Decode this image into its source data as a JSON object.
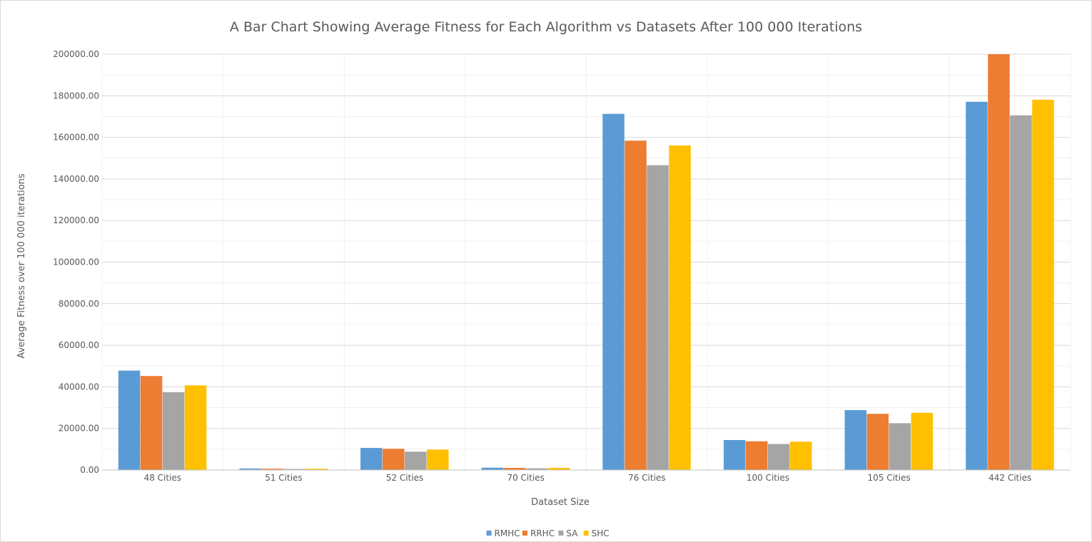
{
  "chart_data": {
    "type": "bar",
    "title": "A Bar Chart Showing Average Fitness for Each Algorithm vs Datasets After 100 000 Iterations",
    "xlabel": "Dataset Size",
    "ylabel": "Average Fitness over 100 000 iterations",
    "ylim": [
      0,
      200000
    ],
    "ytick_values": [
      0,
      20000,
      40000,
      60000,
      80000,
      100000,
      120000,
      140000,
      160000,
      180000,
      200000
    ],
    "ytick_labels": [
      "0.00",
      "20000.00",
      "40000.00",
      "60000.00",
      "80000.00",
      "100000.00",
      "120000.00",
      "140000.00",
      "160000.00",
      "180000.00",
      "200000.00"
    ],
    "grid": true,
    "legend_position": "bottom",
    "categories": [
      "48 Cities",
      "51 Cities",
      "52 Cities",
      "70 Cities",
      "76 Cities",
      "100 Cities",
      "105 Cities",
      "442 Cities"
    ],
    "series": [
      {
        "name": "RMHC",
        "color": "#5b9bd5",
        "values": [
          47800,
          700,
          10600,
          1100,
          171300,
          14400,
          28800,
          177100
        ]
      },
      {
        "name": "RRHC",
        "color": "#ed7d31",
        "values": [
          45200,
          600,
          10200,
          1000,
          158400,
          13800,
          27000,
          200000
        ]
      },
      {
        "name": "SA",
        "color": "#a5a5a5",
        "values": [
          37400,
          500,
          8800,
          800,
          146600,
          12500,
          22500,
          170600
        ]
      },
      {
        "name": "SHC",
        "color": "#ffc000",
        "values": [
          40700,
          600,
          9800,
          1000,
          156100,
          13600,
          27500,
          178100
        ]
      }
    ]
  }
}
